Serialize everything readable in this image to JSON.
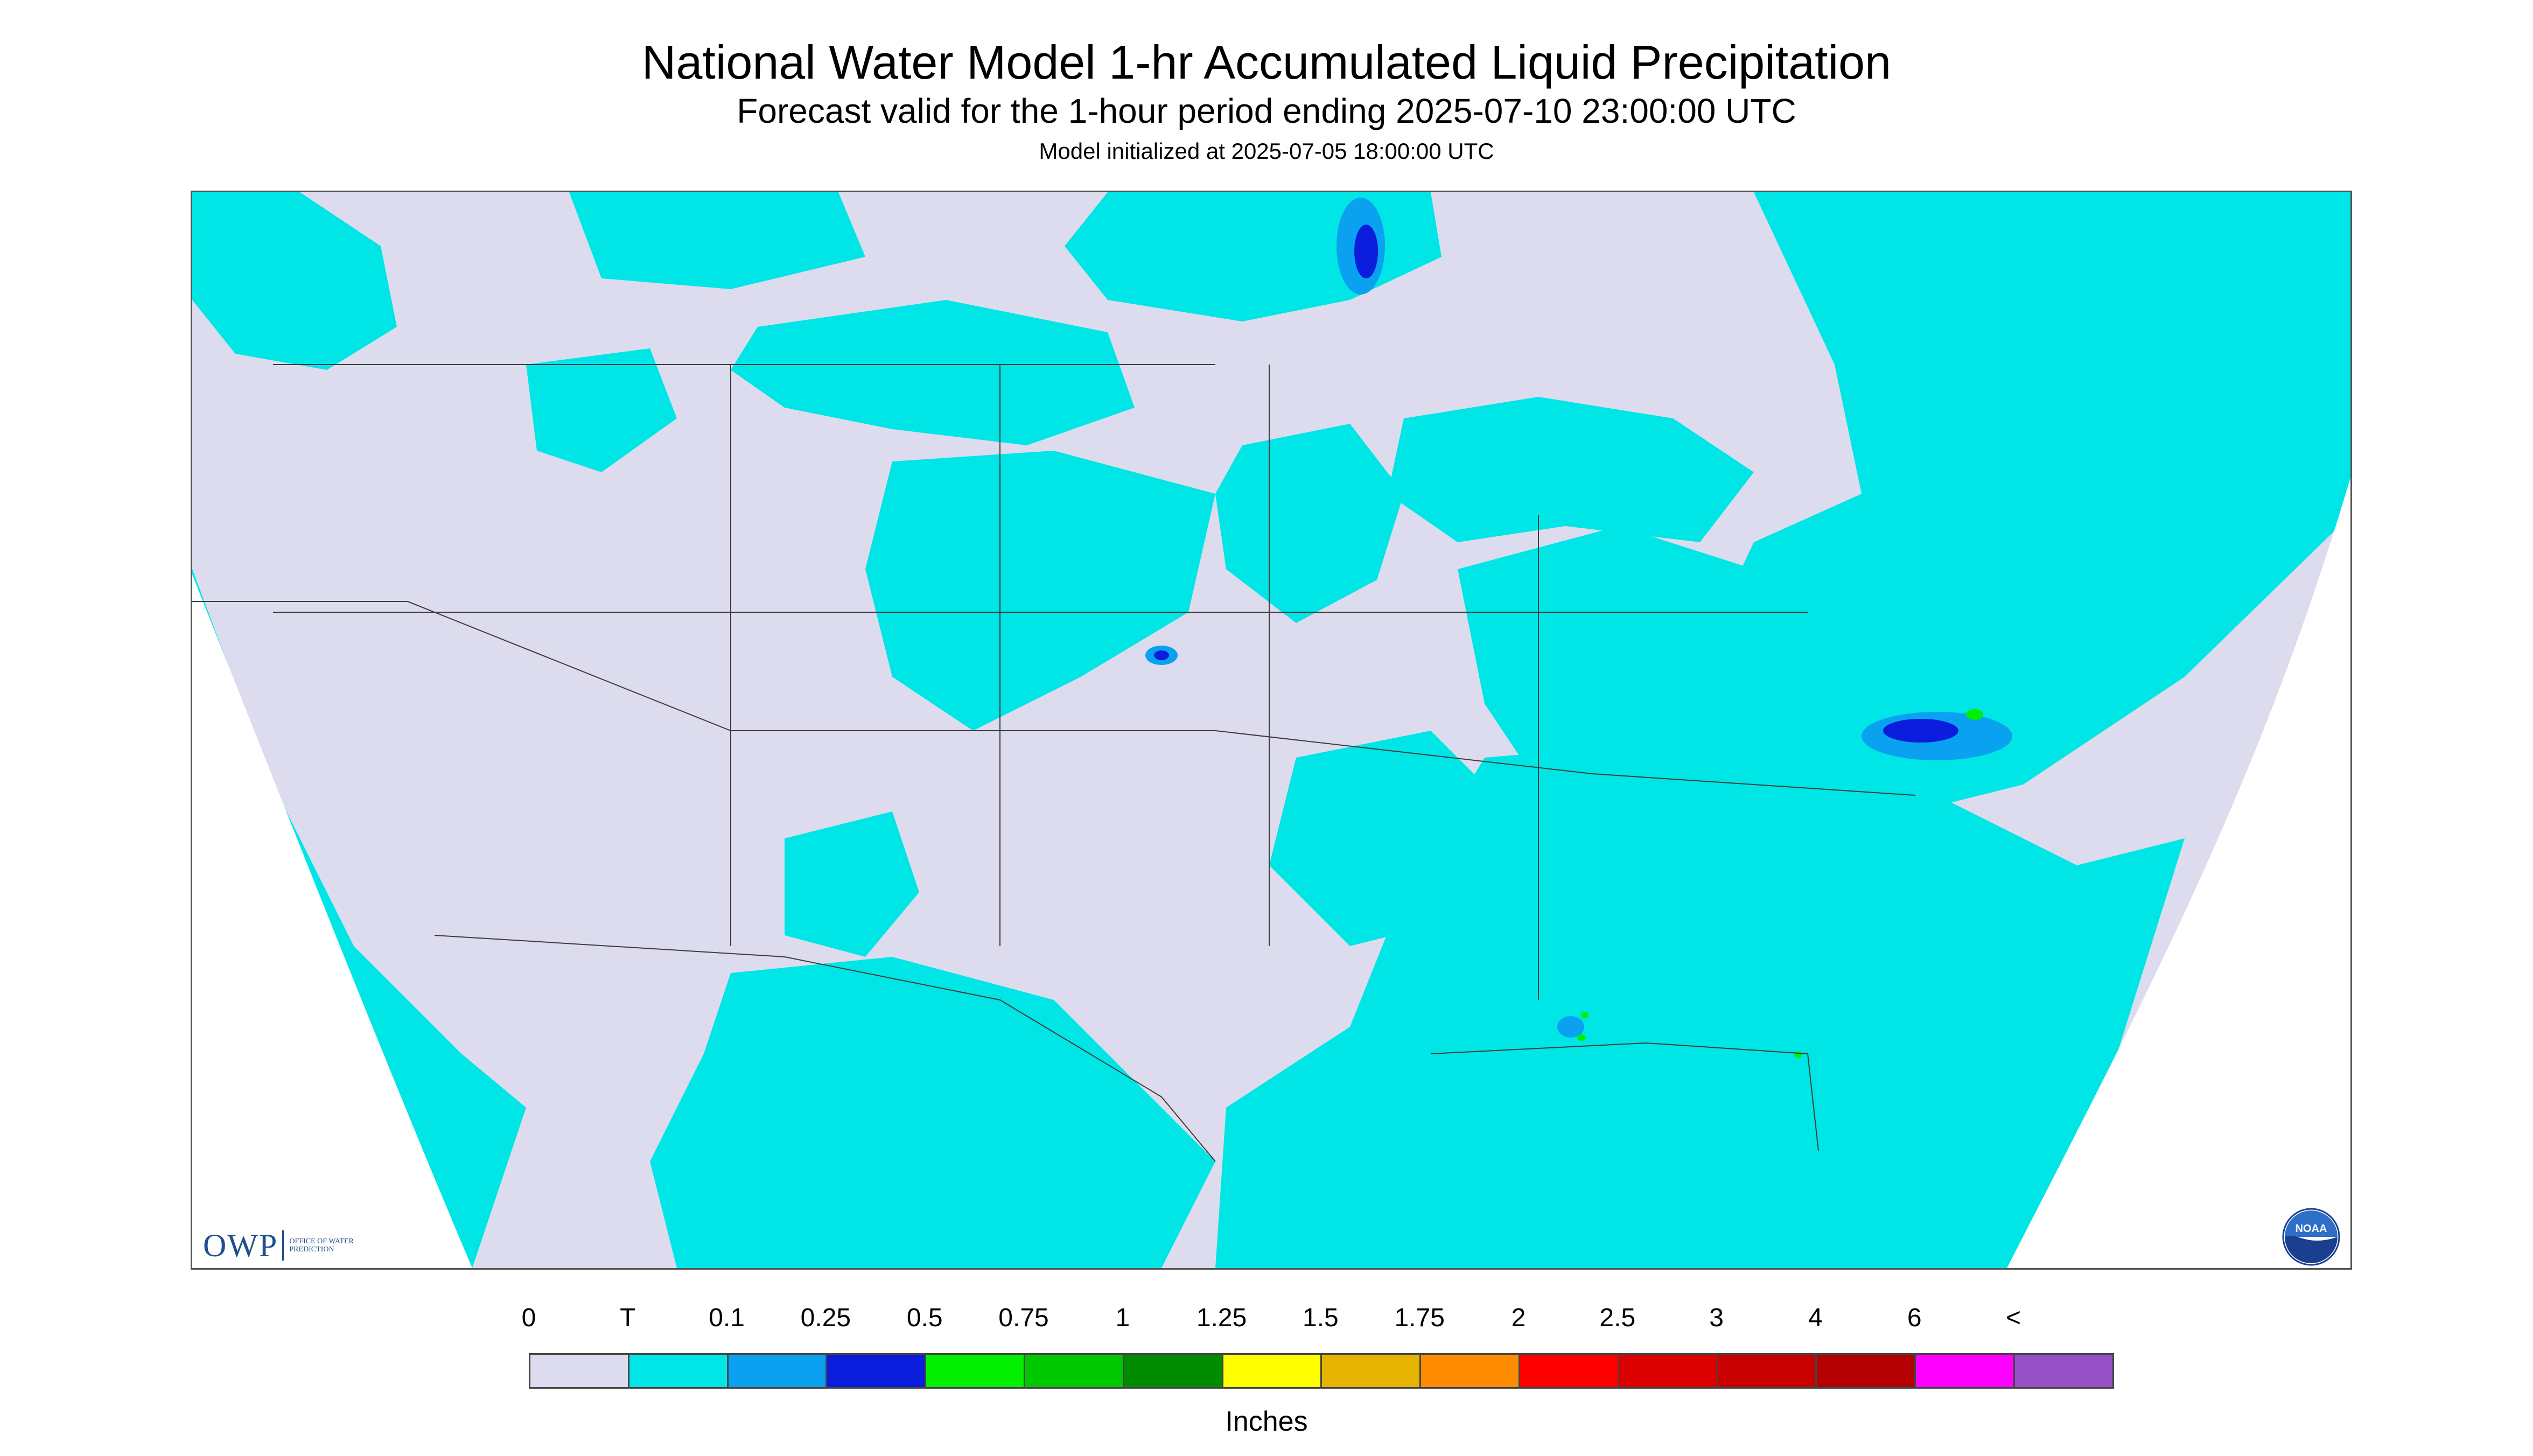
{
  "header": {
    "title": "National Water Model 1-hr Accumulated Liquid Precipitation",
    "subtitle": "Forecast valid for the 1-hour period ending 2025-07-10 23:00:00 UTC",
    "init": "Model initialized at 2025-07-05 18:00:00 UTC"
  },
  "map": {
    "background_color": "#dcdcee",
    "border_color": "#3c3c3c",
    "precip_colors": {
      "trace": "#00e5e5",
      "light": "#0aa2f0",
      "moderate": "#0b1ddc",
      "heavy": "#00f000"
    }
  },
  "logos": {
    "owp_letters": "OWP",
    "owp_text": "OFFICE OF WATER PREDICTION",
    "noaa_text": "NOAA"
  },
  "legend": {
    "labels": [
      "0",
      "T",
      "0.1",
      "0.25",
      "0.5",
      "0.75",
      "1",
      "1.25",
      "1.5",
      "1.75",
      "2",
      "2.5",
      "3",
      "4",
      "6",
      "<"
    ],
    "colors": [
      "#dcdcee",
      "#00e5e5",
      "#0aa2f0",
      "#0b1ddc",
      "#00f000",
      "#00c800",
      "#008c00",
      "#ffff00",
      "#e6b400",
      "#ff8c00",
      "#ff0000",
      "#dc0000",
      "#c80000",
      "#b40000",
      "#ff00ff",
      "#9650c8"
    ],
    "units": "Inches"
  }
}
